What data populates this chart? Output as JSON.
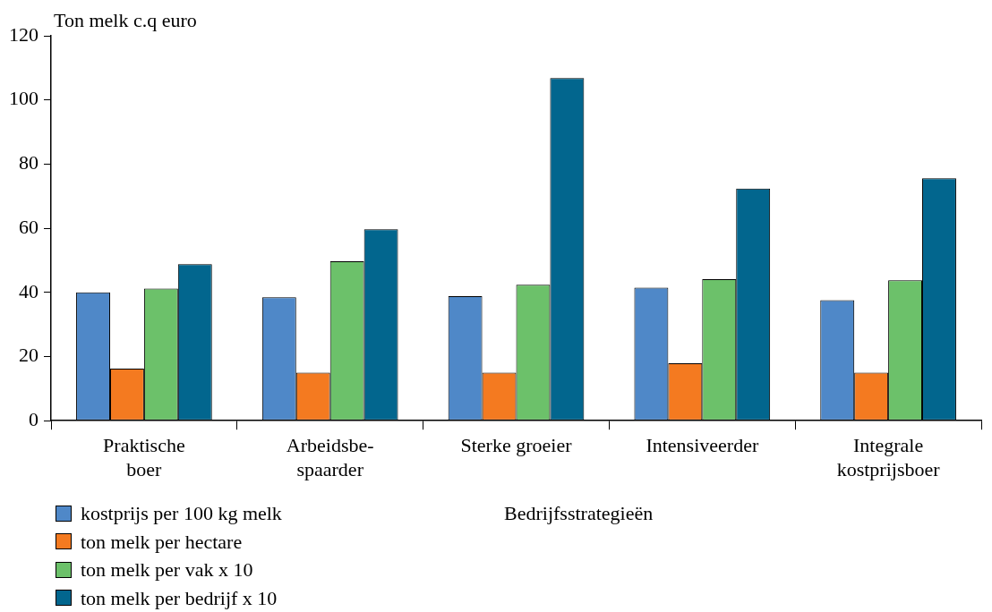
{
  "chart_data": {
    "type": "bar",
    "ylabel": "Ton melk c.q euro",
    "xlabel": "Bedrijfsstrategieën",
    "categories": [
      "Praktische\nboer",
      "Arbeidsbe-\nspaarder",
      "Sterke groeier",
      "Intensiveerder",
      "Integrale\nkostprijsboer"
    ],
    "series": [
      {
        "name": "kostprijs per 100 kg melk",
        "color": "#4f88c8",
        "values": [
          40,
          38.5,
          38.8,
          41.5,
          37.6
        ]
      },
      {
        "name": "ton melk per hectare",
        "color": "#f47a20",
        "values": [
          16.2,
          15,
          15,
          17.9,
          15
        ]
      },
      {
        "name": "ton melk per vak x 10",
        "color": "#6cc16a",
        "values": [
          41.2,
          49.7,
          42.4,
          44.1,
          43.8
        ]
      },
      {
        "name": "ton melk per bedrijf x 10",
        "color": "#02668e",
        "values": [
          48.8,
          59.7,
          106.8,
          72.4,
          75.6
        ]
      }
    ],
    "ylim": [
      0,
      120
    ],
    "yticks": [
      0,
      20,
      40,
      60,
      80,
      100,
      120
    ],
    "grid": false,
    "legend": "bottom left"
  }
}
